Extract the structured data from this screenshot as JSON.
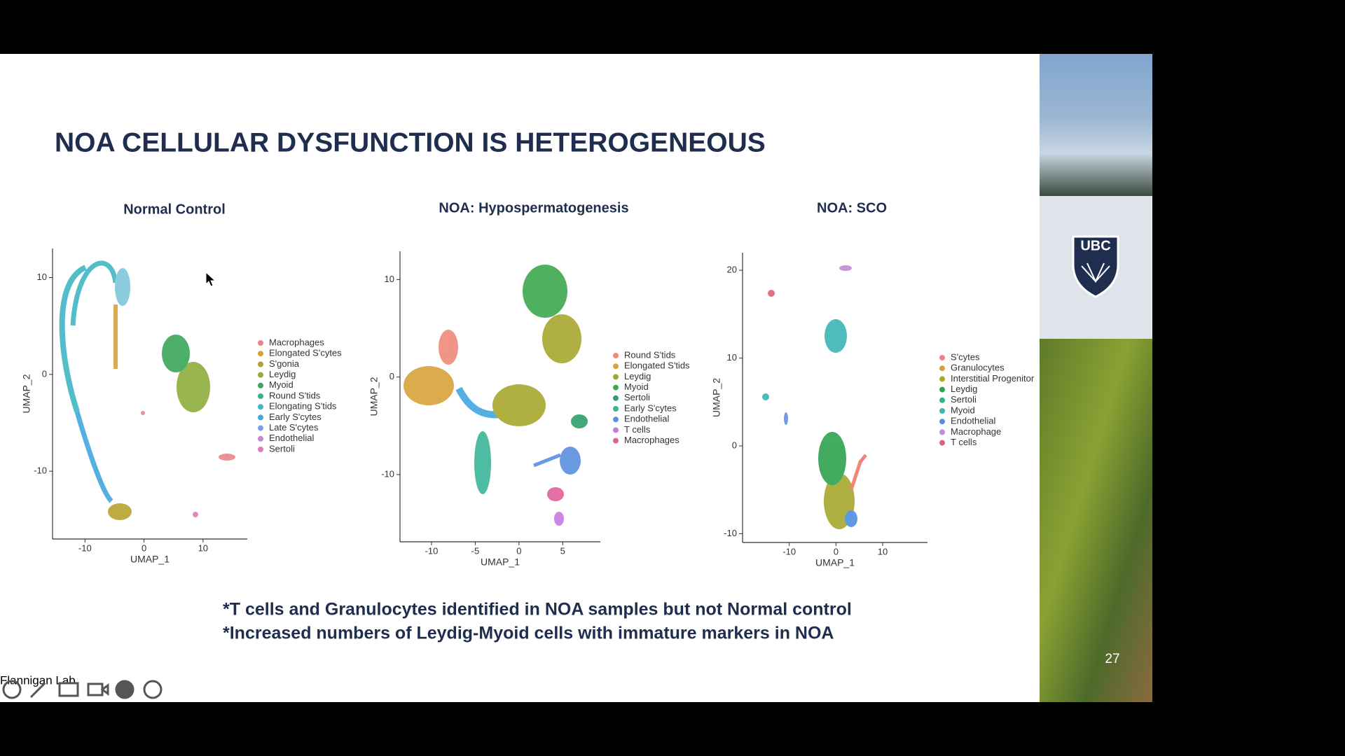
{
  "slide": {
    "title": "NOA CELLULAR DYSFUNCTION IS HETEROGENEOUS",
    "number": "27"
  },
  "plots": [
    {
      "title": "Normal Control",
      "xlabel": "UMAP_1",
      "ylabel": "UMAP_2",
      "xlim": [
        -15.5,
        17.5
      ],
      "ylim": [
        -17,
        13
      ],
      "xticks": [
        -10,
        0,
        10
      ],
      "yticks": [
        -10,
        0,
        10
      ],
      "legend": [
        {
          "name": "Macrophages",
          "color": "#e7868a"
        },
        {
          "name": "Elongated S'cytes",
          "color": "#d9a03a"
        },
        {
          "name": "S'gonia",
          "color": "#b8a22e"
        },
        {
          "name": "Leydig",
          "color": "#8fae3a"
        },
        {
          "name": "Myoid",
          "color": "#3aa659"
        },
        {
          "name": "Round S'tids",
          "color": "#35b38f"
        },
        {
          "name": "Elongating S'tids",
          "color": "#41b8c4"
        },
        {
          "name": "Early S'cytes",
          "color": "#44a7e0"
        },
        {
          "name": "Late S'cytes",
          "color": "#7a9de8"
        },
        {
          "name": "Endothelial",
          "color": "#c08ad8"
        },
        {
          "name": "Sertoli",
          "color": "#e57ab8"
        }
      ]
    },
    {
      "title": "NOA: Hypospermatogenesis",
      "xlabel": "UMAP_1",
      "ylabel": "UMAP_2",
      "xlim": [
        -13.6,
        9.3
      ],
      "ylim": [
        -16.9,
        12.9
      ],
      "xticks": [
        -10,
        -5,
        0,
        5
      ],
      "yticks": [
        -10,
        0,
        10
      ],
      "legend": [
        {
          "name": "Round S'tids",
          "color": "#ef8a7a"
        },
        {
          "name": "Elongated S'tids",
          "color": "#d9a23a"
        },
        {
          "name": "Leydig",
          "color": "#a8a72d"
        },
        {
          "name": "Myoid",
          "color": "#3da94f"
        },
        {
          "name": "Sertoli",
          "color": "#2f9f6a"
        },
        {
          "name": "Early S'cytes",
          "color": "#3bb59a"
        },
        {
          "name": "Endothelial",
          "color": "#5b8fe0"
        },
        {
          "name": "T cells",
          "color": "#c77ae0"
        },
        {
          "name": "Macrophages",
          "color": "#e0609a"
        }
      ]
    },
    {
      "title": "NOA: SCO",
      "xlabel": "UMAP_1",
      "ylabel": "UMAP_2",
      "xlim": [
        -20,
        19.6
      ],
      "ylim": [
        -11,
        22
      ],
      "xticks": [
        -10,
        0,
        10
      ],
      "yticks": [
        -10,
        0,
        10,
        20
      ],
      "legend": [
        {
          "name": "S'cytes",
          "color": "#e7868a"
        },
        {
          "name": "Granulocytes",
          "color": "#d9a03a"
        },
        {
          "name": "Interstitial Progenitor",
          "color": "#a8a72d"
        },
        {
          "name": "Leydig",
          "color": "#2fa34f"
        },
        {
          "name": "Sertoli",
          "color": "#35b38f"
        },
        {
          "name": "Myoid",
          "color": "#3bb5b5"
        },
        {
          "name": "Endothelial",
          "color": "#4f8ee0"
        },
        {
          "name": "Macrophage",
          "color": "#c08ad8"
        },
        {
          "name": "T cells",
          "color": "#e0607a"
        }
      ]
    }
  ],
  "notes": [
    "*T cells and Granulocytes identified in NOA samples but not Normal control",
    "*Increased numbers of Leydig-Myoid cells with immature markers in NOA"
  ],
  "toolbar": {
    "label": "Flannigan Lab"
  }
}
